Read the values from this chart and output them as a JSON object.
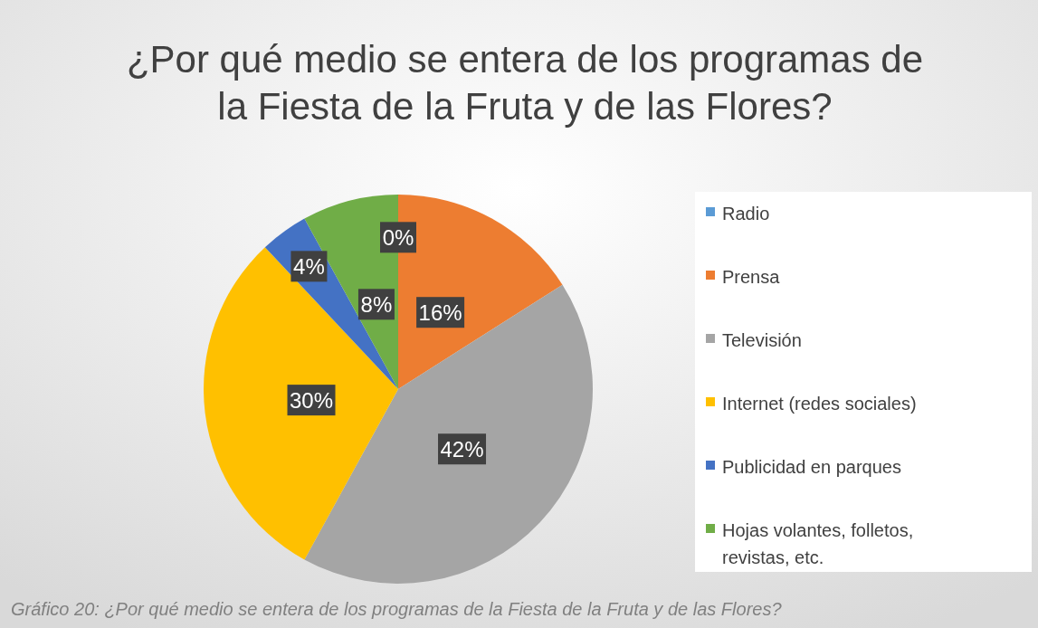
{
  "chart_data": {
    "type": "pie",
    "title": "¿Por qué medio se entera de los programas de la Fiesta de la Fruta y de las Flores?",
    "categories": [
      "Radio",
      "Prensa",
      "Televisión",
      "Internet (redes sociales)",
      "Publicidad en parques",
      "Hojas volantes, folletos, revistas, etc."
    ],
    "values": [
      0,
      16,
      42,
      30,
      4,
      8
    ],
    "colors": [
      "#5b9bd5",
      "#ed7d31",
      "#a5a5a5",
      "#ffc000",
      "#4472c4",
      "#70ad47"
    ],
    "value_labels": [
      "0%",
      "16%",
      "42%",
      "30%",
      "4%",
      "8%"
    ],
    "legend": "right",
    "annotations": [
      "Gráfico 20: ¿Por qué medio se entera de los programas de la Fiesta de la Fruta y de las Flores?"
    ]
  }
}
